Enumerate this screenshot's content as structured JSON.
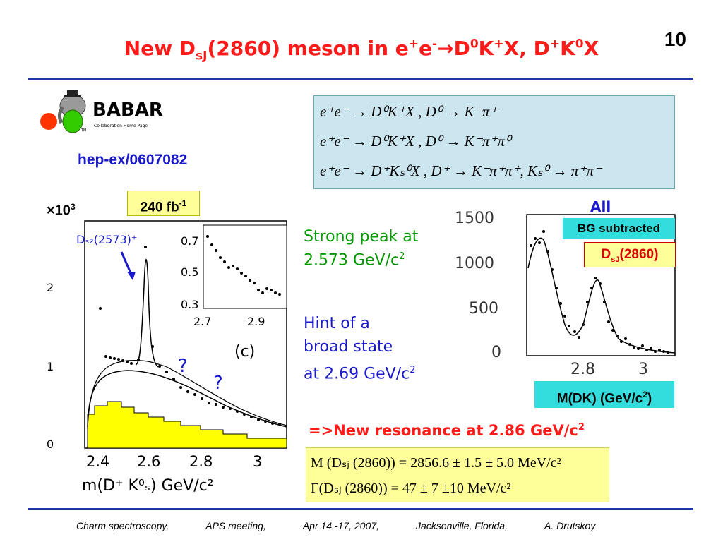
{
  "page_number": "10",
  "title": {
    "part1": "New D",
    "sub1": "sJ",
    "part2": "(2860)  meson in e",
    "sup1": "+",
    "part3": "e",
    "sup2": "-",
    "arrow": "→",
    "part4": "D",
    "sup3": "0",
    "part5": "K",
    "sup4": "+",
    "part6": "X, D",
    "sup5": "+",
    "part7": "K",
    "sup6": "0",
    "part8": "X"
  },
  "logo": {
    "name": "BABAR",
    "subtitle": "Collaboration Home Page",
    "tm": "TM"
  },
  "reference": "hep-ex/0607082",
  "equations": [
    "e⁺e⁻ → D⁰K⁺X , D⁰ → K⁻π⁺",
    "e⁺e⁻ → D⁰K⁺X , D⁰ → K⁻π⁺π⁰",
    "e⁺e⁻ → D⁺Kₛ⁰X , D⁺ → K⁻π⁺π⁺, Kₛ⁰ → π⁺π⁻"
  ],
  "luminosity": {
    "value": "240 fb",
    "sup": "-1"
  },
  "scale_label": {
    "base": "×10",
    "sup": "3"
  },
  "left_plot": {
    "peak_label": "Dₛ₂(2573)⁺",
    "panel_label": "(c)",
    "question_marks": [
      "?",
      "?"
    ],
    "y_ticks": [
      "2",
      "1",
      "0"
    ],
    "x_ticks": [
      "2.4",
      "2.6",
      "2.8",
      "3"
    ],
    "x_axis_label": "m(D⁺ K⁰ₛ) GeV/c²",
    "inset_y_ticks": [
      "0.7",
      "0.5",
      "0.3"
    ],
    "inset_x_ticks": [
      "2.7",
      "2.9"
    ]
  },
  "notes": {
    "strong_peak": [
      "Strong peak at",
      "2.573 GeV/c"
    ],
    "strong_peak_sup": "2",
    "hint": [
      "Hint of a",
      "broad state",
      "at 2.69 GeV/c"
    ],
    "hint_sup": "2"
  },
  "right_plot": {
    "header": "All",
    "y_ticks": [
      "1500",
      "1000",
      "500",
      "0"
    ],
    "x_ticks": [
      "2.8",
      "3"
    ],
    "bg_label": "BG subtracted",
    "dsj_label": {
      "base": "D",
      "sub": "sJ",
      "rest": "(2860)"
    },
    "axis_label": {
      "text": "M(DK) (GeV/c",
      "sup": "2",
      "close": ")"
    }
  },
  "new_resonance": {
    "text": "=>New resonance at 2.86 GeV/c",
    "sup": "2"
  },
  "results": [
    "M (Dₛⱼ (2860)) = 2856.6 ± 1.5 ± 5.0 MeV/c²",
    "Γ(Dₛⱼ (2860)) = 47 ± 7 ±10 MeV/c²"
  ],
  "footer": [
    "Charm spectroscopy,",
    "APS meeting,",
    "Apr 14 -17, 2007,",
    "Jacksonville, Florida,",
    "A. Drutskoy"
  ],
  "colors": {
    "title": "#ff1a1a",
    "rule": "#2233aa",
    "green_text": "#009900",
    "blue_text": "#1a1acc",
    "cyan_box": "#33dddd",
    "yellow_box": "#ffff99"
  }
}
